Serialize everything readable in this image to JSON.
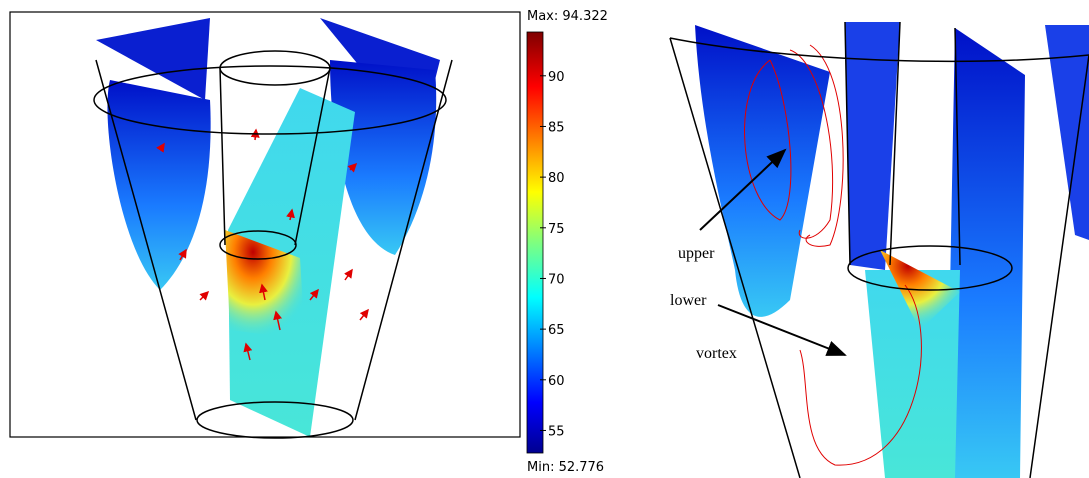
{
  "left_panel": {
    "max_label": "Max: 94.322",
    "min_label": "Min: 52.776",
    "colorbar": {
      "range": [
        52.776,
        94.322
      ],
      "ticks": [
        55,
        60,
        65,
        70,
        75,
        80,
        85,
        90
      ]
    }
  },
  "right_panel": {
    "annotations": [
      "upper",
      "lower",
      "vortex"
    ]
  }
}
